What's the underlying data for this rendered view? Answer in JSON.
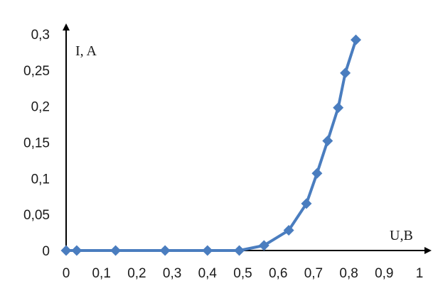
{
  "chart_data": {
    "type": "line",
    "title": "",
    "xlabel": "U,B",
    "ylabel": "I, A",
    "xlim": [
      0,
      1
    ],
    "ylim": [
      0,
      0.3
    ],
    "grid": false,
    "legend": "none",
    "x_ticks": [
      "0",
      "0,1",
      "0,2",
      "0,3",
      "0,4",
      "0,5",
      "0,6",
      "0,7",
      "0,8",
      "0,9",
      "1"
    ],
    "y_ticks": [
      "0",
      "0,05",
      "0,1",
      "0,15",
      "0,2",
      "0,25",
      "0,3"
    ],
    "series": [
      {
        "name": "",
        "color": "#4a7dbf",
        "x": [
          0,
          0.03,
          0.14,
          0.28,
          0.4,
          0.49,
          0.56,
          0.63,
          0.68,
          0.71,
          0.74,
          0.77,
          0.79,
          0.82
        ],
        "y": [
          0,
          0,
          0,
          0,
          0,
          0,
          0.007,
          0.028,
          0.065,
          0.107,
          0.152,
          0.198,
          0.246,
          0.292
        ]
      }
    ]
  }
}
